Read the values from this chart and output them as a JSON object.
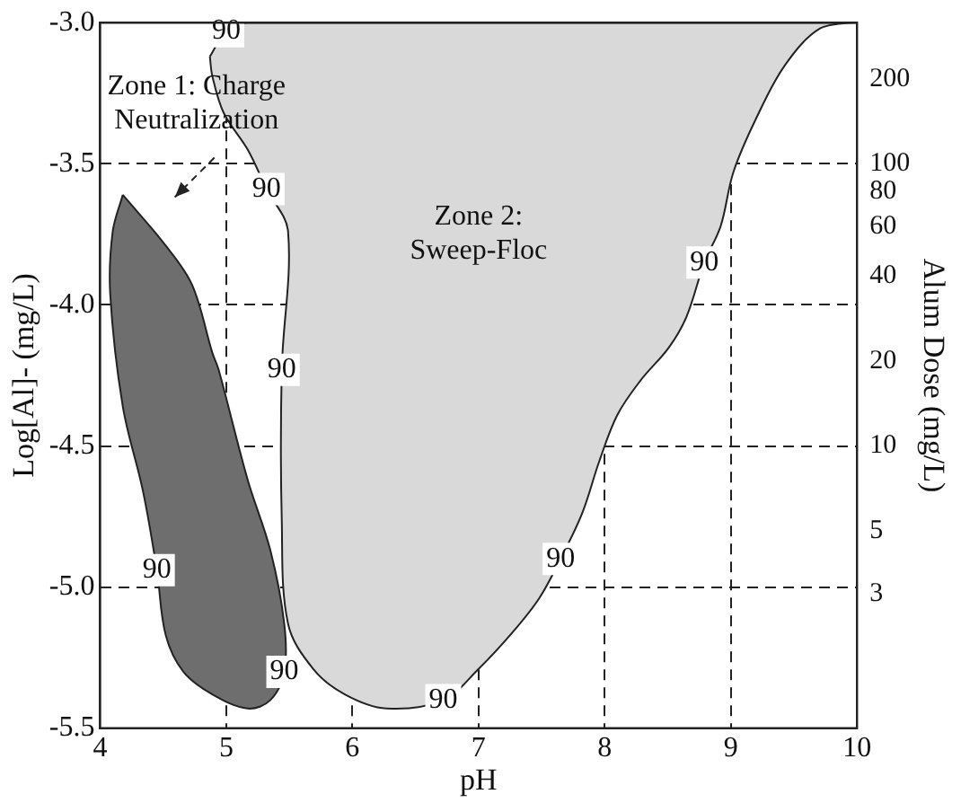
{
  "chart_data": {
    "type": "area",
    "xlabel": "pH",
    "ylabel": "Log[Al]- (mg/L)",
    "y2label": "Alum Dose (mg/L)",
    "xlim": [
      4,
      10
    ],
    "xticks": [
      4,
      5,
      6,
      7,
      8,
      9,
      10
    ],
    "ylim": [
      -5.5,
      -3.0
    ],
    "yticks": [
      {
        "value": -5.5,
        "label": "-5.5"
      },
      {
        "value": -5,
        "label": "-5.0"
      },
      -4.5,
      {
        "value": -4,
        "label": "-4.0"
      },
      -3.5,
      {
        "value": -3,
        "label": "-3.0"
      }
    ],
    "y2lim": [
      1,
      316
    ],
    "y2ticks": [
      3,
      5,
      10,
      20,
      40,
      60,
      80,
      100,
      200
    ],
    "log": "y2",
    "grid": true,
    "legend": false,
    "marker": "none",
    "series": [
      {
        "color": "#6e6e6e",
        "x": [
          4.18,
          4.52,
          4.73,
          4.89,
          4.94,
          5.17,
          5.35,
          5.46,
          5.46,
          5.35,
          5.17,
          4.89,
          4.66,
          4.52,
          4.45,
          4.34,
          4.18,
          4.08,
          4.1,
          4.18
        ],
        "values": [
          -3.61,
          -3.79,
          -3.93,
          -4.17,
          -4.23,
          -4.62,
          -4.87,
          -5.13,
          -5.3,
          -5.4,
          -5.43,
          -5.38,
          -5.3,
          -5.17,
          -4.94,
          -4.66,
          -4.36,
          -3.96,
          -3.74,
          -3.61
        ]
      },
      {
        "color": "#d9d9d9",
        "x": [
          4.87,
          5.0,
          5.17,
          10,
          9.71,
          9.43,
          9.2,
          9.02,
          8.92,
          8.79,
          8.65,
          8.51,
          8.28,
          8.1,
          7.96,
          7.82,
          7.65,
          7.48,
          7.27,
          7.0,
          6.72,
          6.27,
          5.94,
          5.69,
          5.49,
          5.44,
          5.44,
          5.49,
          5.32,
          5.17,
          4.98,
          4.89,
          4.87
        ],
        "values": [
          -3.12,
          -3.03,
          -3.0,
          -3.0,
          -3.02,
          -3.15,
          -3.34,
          -3.53,
          -3.72,
          -3.85,
          -4.04,
          -4.15,
          -4.27,
          -4.39,
          -4.55,
          -4.74,
          -4.9,
          -5.04,
          -5.16,
          -5.29,
          -5.4,
          -5.43,
          -5.38,
          -5.29,
          -5.13,
          -4.76,
          -4.23,
          -3.74,
          -3.59,
          -3.45,
          -3.32,
          -3.19,
          -3.12
        ]
      }
    ],
    "annotations": [
      "Zone 1: Charge\nNeutralization",
      "Zone 2:\nSweep-Floc",
      {
        "text": "90",
        "x": 5.0,
        "y": -3.03
      },
      {
        "text": "90",
        "x": 5.32,
        "y": -3.59
      },
      {
        "text": "90",
        "x": 5.44,
        "y": -4.23
      },
      {
        "text": "90",
        "x": 4.45,
        "y": -4.94
      },
      {
        "text": "90",
        "x": 5.46,
        "y": -5.3
      },
      {
        "text": "90",
        "x": 6.72,
        "y": -5.4
      },
      {
        "text": "90",
        "x": 7.65,
        "y": -4.9
      },
      {
        "text": "90",
        "x": 8.79,
        "y": -3.85
      }
    ]
  }
}
